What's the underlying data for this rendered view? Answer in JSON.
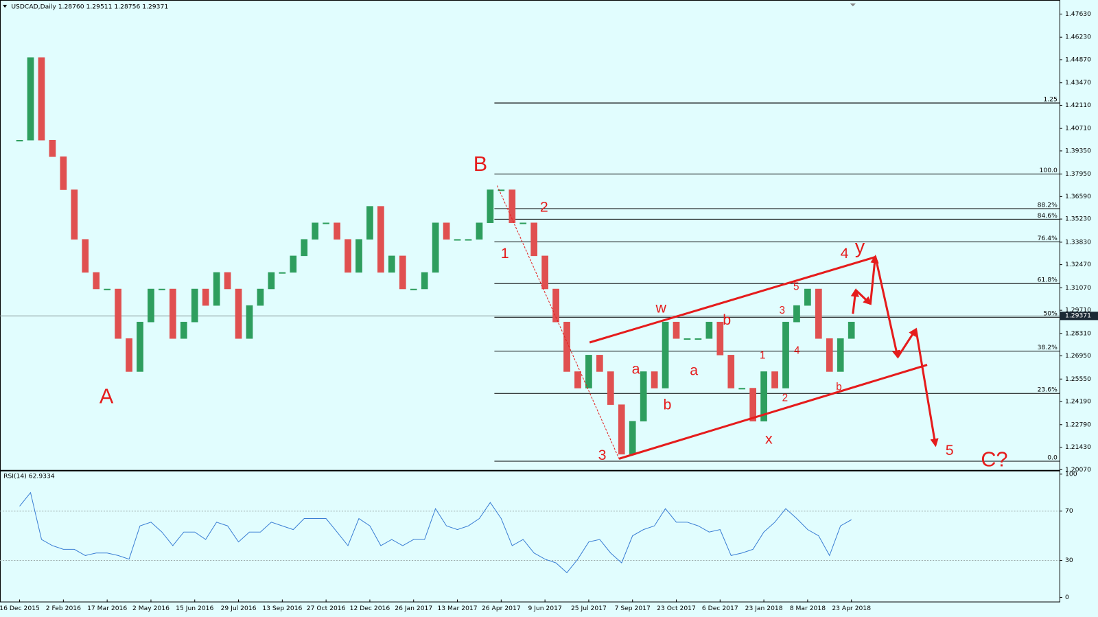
{
  "chart_data": [
    {
      "type": "candlestick",
      "title": "USDCAD,Daily  1.28760 1.29511 1.28756 1.29371",
      "categories": [
        "16 Dec 2015",
        null,
        null,
        null,
        "2 Feb 2016",
        null,
        null,
        null,
        "17 Mar 2016",
        null,
        null,
        null,
        "2 May 2016",
        null,
        null,
        null,
        "15 Jun 2016",
        null,
        null,
        null,
        "29 Jul 2016",
        null,
        null,
        null,
        "13 Sep 2016",
        null,
        null,
        null,
        "27 Oct 2016",
        null,
        null,
        null,
        "12 Dec 2016",
        null,
        null,
        null,
        "26 Jan 2017",
        null,
        null,
        null,
        "13 Mar 2017",
        null,
        null,
        null,
        "26 Apr 2017",
        null,
        null,
        null,
        "9 Jun 2017",
        null,
        null,
        null,
        "25 Jul 2017",
        null,
        null,
        null,
        "7 Sep 2017",
        null,
        null,
        null,
        "23 Oct 2017",
        null,
        null,
        null,
        "6 Dec 2017",
        null,
        null,
        null,
        "23 Jan 2018",
        null,
        null,
        null,
        "8 Mar 2018",
        null,
        null,
        null,
        "23 Apr 2018"
      ],
      "values": [
        1.4,
        1.45,
        1.4,
        1.39,
        1.37,
        1.34,
        1.32,
        1.31,
        1.31,
        1.28,
        1.26,
        1.29,
        1.31,
        1.31,
        1.28,
        1.29,
        1.31,
        1.3,
        1.32,
        1.31,
        1.28,
        1.3,
        1.31,
        1.32,
        1.32,
        1.33,
        1.34,
        1.35,
        1.35,
        1.34,
        1.32,
        1.34,
        1.36,
        1.32,
        1.33,
        1.31,
        1.31,
        1.32,
        1.35,
        1.34,
        1.34,
        1.34,
        1.35,
        1.37,
        1.37,
        1.35,
        1.35,
        1.33,
        1.31,
        1.29,
        1.26,
        1.25,
        1.27,
        1.26,
        1.24,
        1.21,
        1.23,
        1.26,
        1.25,
        1.29,
        1.28,
        1.28,
        1.28,
        1.29,
        1.27,
        1.25,
        1.25,
        1.23,
        1.26,
        1.25,
        1.29,
        1.3,
        1.31,
        1.28,
        1.26,
        1.28,
        1.29
      ],
      "up_color": "#2e9e5e",
      "down_color": "#e05050",
      "ylim": [
        1.2001,
        1.4831
      ],
      "yticks": [
        {
          "value": 1.4763,
          "label": "1.47630"
        },
        {
          "value": 1.4623,
          "label": "1.46230"
        },
        {
          "value": 1.4487,
          "label": "1.44870"
        },
        {
          "value": 1.4347,
          "label": "1.43470"
        },
        {
          "value": 1.4211,
          "label": "1.42110"
        },
        {
          "value": 1.4071,
          "label": "1.40710"
        },
        {
          "value": 1.3935,
          "label": "1.39350"
        },
        {
          "value": 1.3795,
          "label": "1.37950"
        },
        {
          "value": 1.3659,
          "label": "1.36590"
        },
        {
          "value": 1.3523,
          "label": "1.35230"
        },
        {
          "value": 1.3383,
          "label": "1.33830"
        },
        {
          "value": 1.3247,
          "label": "1.32470"
        },
        {
          "value": 1.3107,
          "label": "1.31070"
        },
        {
          "value": 1.2971,
          "label": "1.29710"
        },
        {
          "value": 1.2831,
          "label": "1.28310"
        },
        {
          "value": 1.2695,
          "label": "1.26950"
        },
        {
          "value": 1.2555,
          "label": "1.25550"
        },
        {
          "value": 1.2419,
          "label": "1.24190"
        },
        {
          "value": 1.2279,
          "label": "1.22790"
        },
        {
          "value": 1.2143,
          "label": "1.21430"
        },
        {
          "value": 1.2007,
          "label": "1.20070"
        }
      ],
      "current_price": {
        "value": 1.29371,
        "label": "1.29371"
      },
      "levels": [
        {
          "value": 1.4225,
          "label": "1.25"
        },
        {
          "value": 1.3795,
          "label": "100.0"
        },
        {
          "value": 1.3586,
          "label": "88.2%"
        },
        {
          "value": 1.3522,
          "label": "84.6%"
        },
        {
          "value": 1.3385,
          "label": "76.4%"
        },
        {
          "value": 1.3133,
          "label": "61.8%"
        },
        {
          "value": 1.2929,
          "label": "50%"
        },
        {
          "value": 1.2724,
          "label": "38.2%"
        },
        {
          "value": 1.2468,
          "label": "23.6%"
        },
        {
          "value": 1.2058,
          "label": "0.0"
        }
      ],
      "annotations": [
        "A",
        "B",
        "C?",
        "1",
        "2",
        "3",
        "4",
        "5",
        "y",
        "w",
        "b",
        "a",
        "a",
        "b",
        "x",
        "1",
        "2",
        "3",
        "4",
        "5",
        "b"
      ]
    },
    {
      "type": "line",
      "title": "RSI(14) 62.9334",
      "values": [
        74,
        85,
        47,
        42,
        39,
        39,
        34,
        36,
        36,
        34,
        31,
        58,
        61,
        53,
        42,
        53,
        53,
        47,
        61,
        58,
        45,
        53,
        53,
        61,
        58,
        55,
        64,
        64,
        64,
        53,
        42,
        64,
        58,
        42,
        47,
        42,
        47,
        47,
        72,
        58,
        55,
        58,
        64,
        77,
        64,
        42,
        47,
        36,
        31,
        28,
        20,
        31,
        45,
        47,
        36,
        28,
        50,
        55,
        58,
        72,
        61,
        61,
        58,
        53,
        55,
        34,
        36,
        39,
        53,
        61,
        72,
        64,
        55,
        50,
        34,
        58,
        63
      ],
      "color": "#3b7fd4",
      "ylim": [
        0,
        100
      ],
      "yticks": [
        0,
        30,
        70,
        100
      ]
    }
  ]
}
